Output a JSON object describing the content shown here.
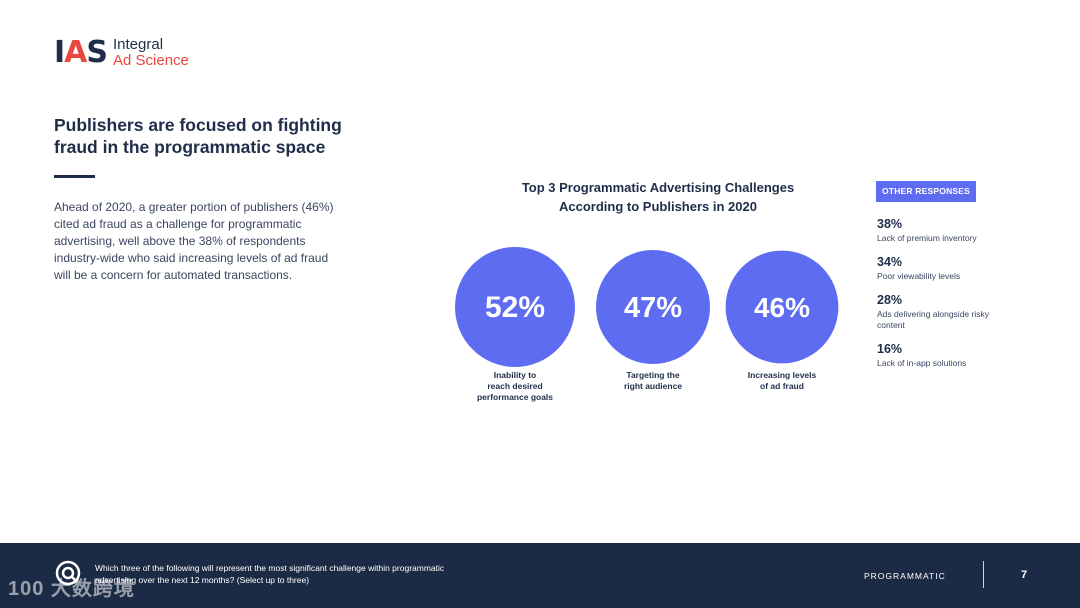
{
  "logo": {
    "mark_i": "I",
    "mark_a": "A",
    "mark_s": "S",
    "line1": "Integral",
    "line2": "Ad Science"
  },
  "headline": "Publishers are focused on fighting fraud in the programmatic space",
  "body": "Ahead of 2020, a greater portion of publishers (46%) cited ad fraud as a challenge for programmatic advertising, well above the 38% of respondents industry-wide who said increasing levels of ad fraud will be a concern for automated transactions.",
  "chart_data": {
    "type": "bubble",
    "title_line1": "Top 3 Programmatic Advertising Challenges",
    "title_line2": "According to Publishers in 2020",
    "categories": [
      [
        "Inability to",
        "reach desired",
        "performance goals"
      ],
      [
        "Targeting the",
        "right audience"
      ],
      [
        "Increasing levels",
        "of ad fraud"
      ]
    ],
    "values": [
      52,
      47,
      46
    ],
    "value_labels": [
      "52%",
      "47%",
      "46%"
    ],
    "color": "#5e6cf2"
  },
  "other_responses": {
    "badge": "OTHER RESPONSES",
    "items": [
      {
        "pct": "38%",
        "label": "Lack of premium inventory"
      },
      {
        "pct": "34%",
        "label": "Poor viewability levels"
      },
      {
        "pct": "28%",
        "label": "Ads delivering alongside risky content"
      },
      {
        "pct": "16%",
        "label": "Lack of in-app solutions"
      }
    ]
  },
  "footer": {
    "question": "Which three of the following will represent the most significant challenge within programmatic advertising over the next 12 months? (Select up to three)",
    "section": "PROGRAMMATIC",
    "page": "7",
    "watermark": "100 大数跨境"
  }
}
